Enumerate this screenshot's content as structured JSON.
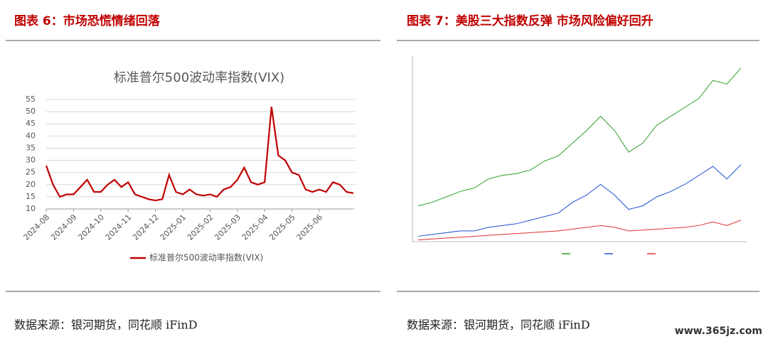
{
  "chart_data": [
    {
      "type": "line",
      "caption": "图表 6：市场恐慌情绪回落",
      "title": "标准普尔500波动率指数(VIX)",
      "categories": [
        "2024-08",
        null,
        null,
        null,
        "2024-09",
        null,
        null,
        null,
        "2024-10",
        null,
        null,
        null,
        "2024-11",
        null,
        null,
        null,
        "2024-12",
        null,
        null,
        null,
        "2025-01",
        null,
        null,
        null,
        "2025-02",
        null,
        null,
        null,
        "2025-03",
        null,
        null,
        null,
        "2025-04",
        null,
        null,
        null,
        "2025-05",
        null,
        null,
        null,
        "2025-06",
        null,
        null,
        null,
        null,
        null
      ],
      "series": [
        {
          "name": "标准普尔500波动率指数(VIX)",
          "color": "#c00000",
          "values": [
            27.8,
            20,
            15,
            16,
            16,
            19,
            22,
            17,
            17,
            20,
            22,
            19,
            21,
            16,
            15,
            14,
            13.5,
            14,
            24,
            17,
            16,
            18,
            16,
            15.5,
            16,
            15,
            18,
            19,
            22,
            27,
            21,
            20,
            21,
            52,
            32,
            30,
            25,
            24,
            18,
            17,
            18,
            17,
            21,
            20,
            17,
            16.5
          ]
        }
      ],
      "ylim": [
        10,
        55
      ],
      "yticks": [
        10,
        15,
        20,
        25,
        30,
        35,
        40,
        45,
        50,
        55
      ],
      "grid": true,
      "legend": "bottom",
      "source": "数据来源：银河期货，同花顺 iFinD"
    },
    {
      "type": "line",
      "caption": "图表 7：美股三大指数反弹 市场风险偏好回升",
      "series": [
        {
          "color": "#2ca02c",
          "values": [
            20,
            22,
            25,
            28,
            30,
            35,
            37,
            38,
            40,
            45,
            48,
            55,
            62,
            70,
            62,
            50,
            55,
            65,
            70,
            75,
            80,
            90,
            88,
            97
          ]
        },
        {
          "color": "#1f4fd1",
          "values": [
            3,
            4,
            5,
            6,
            6,
            8,
            9,
            10,
            12,
            14,
            16,
            22,
            26,
            32,
            26,
            18,
            20,
            25,
            28,
            32,
            37,
            42,
            35,
            43
          ]
        },
        {
          "color": "#e03030",
          "values": [
            1,
            1.5,
            2,
            2.5,
            3,
            3.5,
            4,
            4.5,
            5,
            5.5,
            6,
            7,
            8,
            9,
            8,
            6,
            6.5,
            7,
            7.5,
            8,
            9,
            11,
            9,
            12
          ]
        }
      ],
      "ylim": [
        0,
        100
      ],
      "grid": false,
      "legend": "bottom",
      "source": "数据来源：银河期货，同花顺 iFinD"
    }
  ],
  "watermark": "www.365jz.com"
}
